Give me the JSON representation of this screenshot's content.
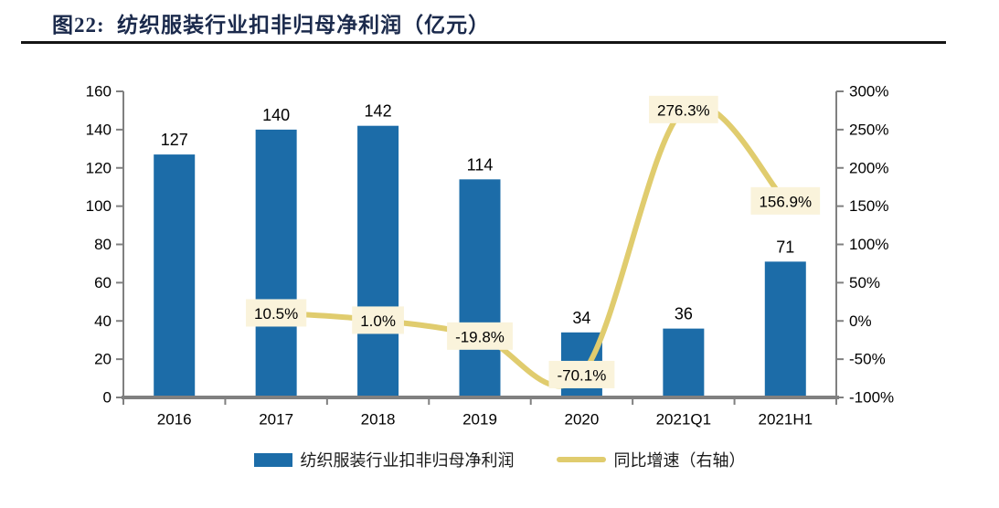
{
  "header": {
    "title": "图22:  纺织服装行业扣非归母净利润（亿元）",
    "color": "#1B2A4C",
    "underline_color": "#141414"
  },
  "chart_data": {
    "type": "combo",
    "title": "纺织服装行业扣非归母净利润（亿元）",
    "categories": [
      "2016",
      "2017",
      "2018",
      "2019",
      "2020",
      "2021Q1",
      "2021H1"
    ],
    "series": [
      {
        "name": "纺织服装行业扣非归母净利润",
        "type": "bar",
        "axis": "left",
        "color": "#1C6CA8",
        "values": [
          127,
          140,
          142,
          114,
          34,
          36,
          71
        ],
        "value_labels": [
          "127",
          "140",
          "142",
          "114",
          "34",
          "36",
          "71"
        ]
      },
      {
        "name": "同比增速（右轴）",
        "type": "line",
        "axis": "right",
        "color": "#E0CC6E",
        "values": [
          null,
          10.5,
          1.0,
          -19.8,
          -70.1,
          276.3,
          156.9
        ],
        "point_labels": [
          "",
          "10.5%",
          "1.0%",
          "-19.8%",
          "-70.1%",
          "276.3%",
          "156.9%"
        ]
      }
    ],
    "left_axis": {
      "min": 0,
      "max": 160,
      "step": 20,
      "tick_labels": [
        "0",
        "20",
        "40",
        "60",
        "80",
        "100",
        "120",
        "140",
        "160"
      ]
    },
    "right_axis": {
      "min": -100,
      "max": 300,
      "step": 50,
      "tick_labels": [
        "-100%",
        "-50%",
        "0%",
        "50%",
        "100%",
        "150%",
        "200%",
        "250%",
        "300%"
      ]
    },
    "grid": false,
    "legend_position": "bottom",
    "point_label_bg": "#FAF3DB",
    "axis_color": "#808080",
    "text_color": "#000000"
  },
  "legend": {
    "items": [
      {
        "label": "纺织服装行业扣非归母净利润",
        "swatch": "bar",
        "color": "#1C6CA8"
      },
      {
        "label": "同比增速（右轴）",
        "swatch": "line",
        "color": "#E0CC6E"
      }
    ]
  }
}
